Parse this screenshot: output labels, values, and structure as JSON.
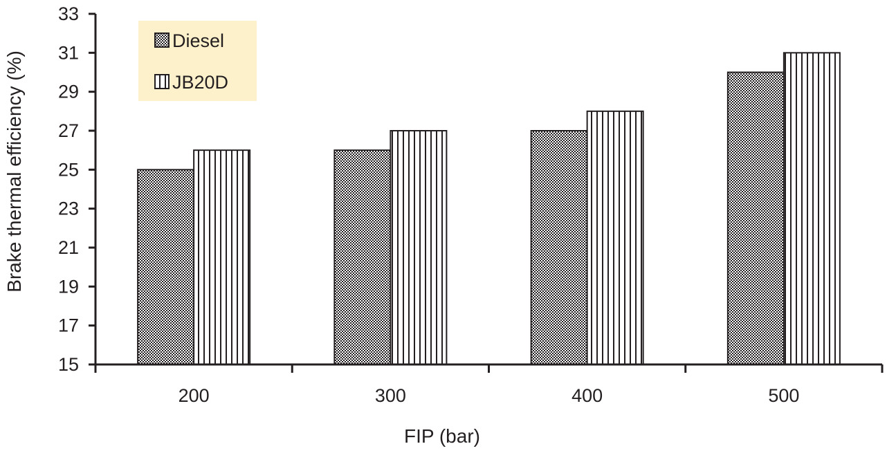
{
  "chart_data": {
    "type": "bar",
    "title": "",
    "xlabel": "FIP (bar)",
    "ylabel": "Brake thermal efficiency (%)",
    "categories": [
      "200",
      "300",
      "400",
      "500"
    ],
    "series": [
      {
        "name": "Diesel",
        "values": [
          25,
          26,
          27,
          30
        ],
        "pattern": "checker"
      },
      {
        "name": "JB20D",
        "values": [
          26,
          27,
          28,
          31
        ],
        "pattern": "vertical-lines"
      }
    ],
    "ylim": [
      15,
      33
    ],
    "yticks": [
      15,
      17,
      19,
      21,
      23,
      25,
      27,
      29,
      31,
      33
    ],
    "grid": false,
    "legend": {
      "placement": "top-left",
      "background": "#fdf1cc"
    },
    "colors": {
      "axis": "#231f20",
      "bar_outline": "#231f20",
      "bar_fill": "#ffffff"
    }
  }
}
